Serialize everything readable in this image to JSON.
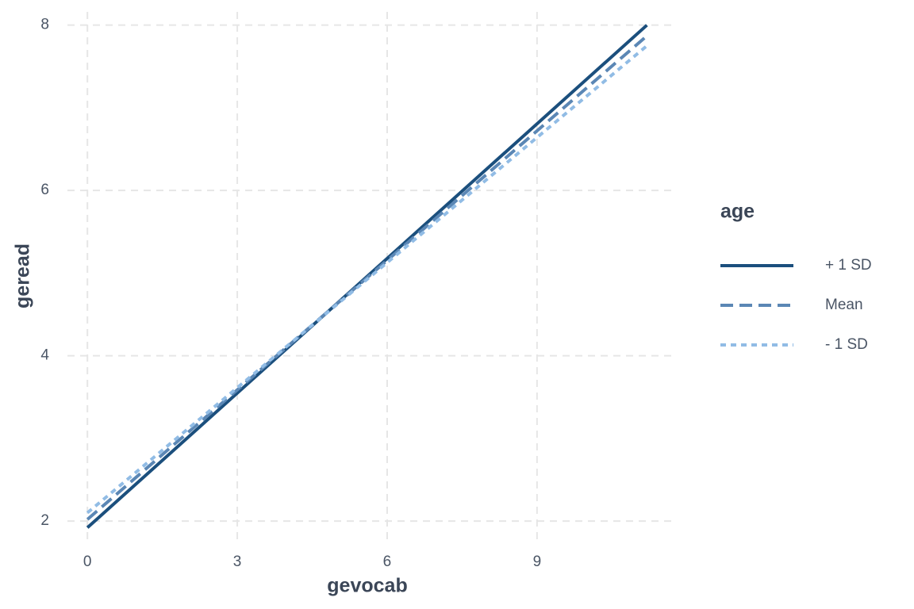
{
  "chart_data": {
    "type": "line",
    "x_label": "gevocab",
    "y_label": "geread",
    "legend_title": "age",
    "xlim": [
      -0.4,
      11.75
    ],
    "ylim": [
      1.78,
      8.16
    ],
    "xticks": [
      0,
      3,
      6,
      9
    ],
    "yticks": [
      2,
      4,
      6,
      8
    ],
    "grid": true,
    "legend_position": "right",
    "x": [
      0,
      11.2
    ],
    "series": [
      {
        "name": "+ 1 SD",
        "color": "#1b4f7d",
        "linetype": "solid",
        "values": [
          1.92,
          8.0
        ]
      },
      {
        "name": "Mean",
        "color": "#5b87b5",
        "linetype": "dashed",
        "values": [
          2.02,
          7.87
        ]
      },
      {
        "name": "- 1 SD",
        "color": "#91bce5",
        "linetype": "dotted",
        "values": [
          2.1,
          7.75
        ]
      }
    ]
  }
}
